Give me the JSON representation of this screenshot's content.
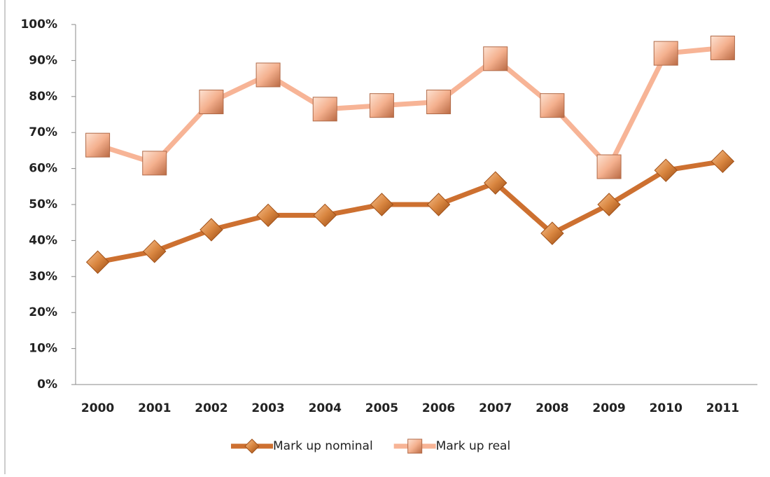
{
  "chart_data": {
    "type": "line",
    "categories": [
      "2000",
      "2001",
      "2002",
      "2003",
      "2004",
      "2005",
      "2006",
      "2007",
      "2008",
      "2009",
      "2010",
      "2011"
    ],
    "series": [
      {
        "name": "Mark up nominal",
        "color": "#cd7030",
        "marker": "diamond",
        "values": [
          34,
          37,
          43,
          47,
          47,
          50,
          50,
          56,
          42,
          50,
          59.5,
          62
        ]
      },
      {
        "name": "Mark up real",
        "color": "#f7b496",
        "marker": "square",
        "values": [
          66.5,
          61.5,
          78.5,
          86,
          76.5,
          77.5,
          78.5,
          90.5,
          77.5,
          60.5,
          92,
          93.5
        ]
      }
    ],
    "ylim": [
      0,
      100
    ],
    "yticks": [
      {
        "value": 0,
        "label": "0%"
      },
      {
        "value": 10,
        "label": "10%"
      },
      {
        "value": 20,
        "label": "20%"
      },
      {
        "value": 30,
        "label": "30%"
      },
      {
        "value": 40,
        "label": "40%"
      },
      {
        "value": 50,
        "label": "50%"
      },
      {
        "value": 60,
        "label": "60%"
      },
      {
        "value": 70,
        "label": "70%"
      },
      {
        "value": 80,
        "label": "80%"
      },
      {
        "value": 90,
        "label": "90%"
      },
      {
        "value": 100,
        "label": "100%"
      }
    ],
    "grid": false,
    "legend": "bottom"
  }
}
